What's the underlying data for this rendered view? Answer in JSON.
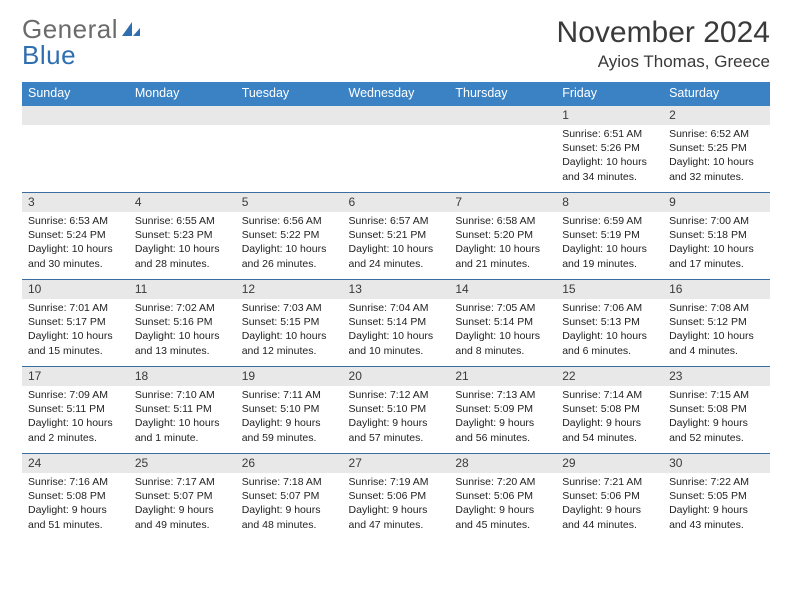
{
  "brand": {
    "line1": "General",
    "line2": "Blue"
  },
  "title": "November 2024",
  "location": "Ayios Thomas, Greece",
  "weekdays": [
    "Sunday",
    "Monday",
    "Tuesday",
    "Wednesday",
    "Thursday",
    "Friday",
    "Saturday"
  ],
  "colors": {
    "header_bg": "#3b82c4",
    "header_text": "#ffffff",
    "daynum_bg": "#e8e8e8",
    "border": "#3b6ea0",
    "logo_gray": "#6b6b6b",
    "logo_blue": "#2f6fb0"
  },
  "weeks": [
    [
      {
        "n": "",
        "sr": "",
        "ss": "",
        "dl": ""
      },
      {
        "n": "",
        "sr": "",
        "ss": "",
        "dl": ""
      },
      {
        "n": "",
        "sr": "",
        "ss": "",
        "dl": ""
      },
      {
        "n": "",
        "sr": "",
        "ss": "",
        "dl": ""
      },
      {
        "n": "",
        "sr": "",
        "ss": "",
        "dl": ""
      },
      {
        "n": "1",
        "sr": "Sunrise: 6:51 AM",
        "ss": "Sunset: 5:26 PM",
        "dl": "Daylight: 10 hours and 34 minutes."
      },
      {
        "n": "2",
        "sr": "Sunrise: 6:52 AM",
        "ss": "Sunset: 5:25 PM",
        "dl": "Daylight: 10 hours and 32 minutes."
      }
    ],
    [
      {
        "n": "3",
        "sr": "Sunrise: 6:53 AM",
        "ss": "Sunset: 5:24 PM",
        "dl": "Daylight: 10 hours and 30 minutes."
      },
      {
        "n": "4",
        "sr": "Sunrise: 6:55 AM",
        "ss": "Sunset: 5:23 PM",
        "dl": "Daylight: 10 hours and 28 minutes."
      },
      {
        "n": "5",
        "sr": "Sunrise: 6:56 AM",
        "ss": "Sunset: 5:22 PM",
        "dl": "Daylight: 10 hours and 26 minutes."
      },
      {
        "n": "6",
        "sr": "Sunrise: 6:57 AM",
        "ss": "Sunset: 5:21 PM",
        "dl": "Daylight: 10 hours and 24 minutes."
      },
      {
        "n": "7",
        "sr": "Sunrise: 6:58 AM",
        "ss": "Sunset: 5:20 PM",
        "dl": "Daylight: 10 hours and 21 minutes."
      },
      {
        "n": "8",
        "sr": "Sunrise: 6:59 AM",
        "ss": "Sunset: 5:19 PM",
        "dl": "Daylight: 10 hours and 19 minutes."
      },
      {
        "n": "9",
        "sr": "Sunrise: 7:00 AM",
        "ss": "Sunset: 5:18 PM",
        "dl": "Daylight: 10 hours and 17 minutes."
      }
    ],
    [
      {
        "n": "10",
        "sr": "Sunrise: 7:01 AM",
        "ss": "Sunset: 5:17 PM",
        "dl": "Daylight: 10 hours and 15 minutes."
      },
      {
        "n": "11",
        "sr": "Sunrise: 7:02 AM",
        "ss": "Sunset: 5:16 PM",
        "dl": "Daylight: 10 hours and 13 minutes."
      },
      {
        "n": "12",
        "sr": "Sunrise: 7:03 AM",
        "ss": "Sunset: 5:15 PM",
        "dl": "Daylight: 10 hours and 12 minutes."
      },
      {
        "n": "13",
        "sr": "Sunrise: 7:04 AM",
        "ss": "Sunset: 5:14 PM",
        "dl": "Daylight: 10 hours and 10 minutes."
      },
      {
        "n": "14",
        "sr": "Sunrise: 7:05 AM",
        "ss": "Sunset: 5:14 PM",
        "dl": "Daylight: 10 hours and 8 minutes."
      },
      {
        "n": "15",
        "sr": "Sunrise: 7:06 AM",
        "ss": "Sunset: 5:13 PM",
        "dl": "Daylight: 10 hours and 6 minutes."
      },
      {
        "n": "16",
        "sr": "Sunrise: 7:08 AM",
        "ss": "Sunset: 5:12 PM",
        "dl": "Daylight: 10 hours and 4 minutes."
      }
    ],
    [
      {
        "n": "17",
        "sr": "Sunrise: 7:09 AM",
        "ss": "Sunset: 5:11 PM",
        "dl": "Daylight: 10 hours and 2 minutes."
      },
      {
        "n": "18",
        "sr": "Sunrise: 7:10 AM",
        "ss": "Sunset: 5:11 PM",
        "dl": "Daylight: 10 hours and 1 minute."
      },
      {
        "n": "19",
        "sr": "Sunrise: 7:11 AM",
        "ss": "Sunset: 5:10 PM",
        "dl": "Daylight: 9 hours and 59 minutes."
      },
      {
        "n": "20",
        "sr": "Sunrise: 7:12 AM",
        "ss": "Sunset: 5:10 PM",
        "dl": "Daylight: 9 hours and 57 minutes."
      },
      {
        "n": "21",
        "sr": "Sunrise: 7:13 AM",
        "ss": "Sunset: 5:09 PM",
        "dl": "Daylight: 9 hours and 56 minutes."
      },
      {
        "n": "22",
        "sr": "Sunrise: 7:14 AM",
        "ss": "Sunset: 5:08 PM",
        "dl": "Daylight: 9 hours and 54 minutes."
      },
      {
        "n": "23",
        "sr": "Sunrise: 7:15 AM",
        "ss": "Sunset: 5:08 PM",
        "dl": "Daylight: 9 hours and 52 minutes."
      }
    ],
    [
      {
        "n": "24",
        "sr": "Sunrise: 7:16 AM",
        "ss": "Sunset: 5:08 PM",
        "dl": "Daylight: 9 hours and 51 minutes."
      },
      {
        "n": "25",
        "sr": "Sunrise: 7:17 AM",
        "ss": "Sunset: 5:07 PM",
        "dl": "Daylight: 9 hours and 49 minutes."
      },
      {
        "n": "26",
        "sr": "Sunrise: 7:18 AM",
        "ss": "Sunset: 5:07 PM",
        "dl": "Daylight: 9 hours and 48 minutes."
      },
      {
        "n": "27",
        "sr": "Sunrise: 7:19 AM",
        "ss": "Sunset: 5:06 PM",
        "dl": "Daylight: 9 hours and 47 minutes."
      },
      {
        "n": "28",
        "sr": "Sunrise: 7:20 AM",
        "ss": "Sunset: 5:06 PM",
        "dl": "Daylight: 9 hours and 45 minutes."
      },
      {
        "n": "29",
        "sr": "Sunrise: 7:21 AM",
        "ss": "Sunset: 5:06 PM",
        "dl": "Daylight: 9 hours and 44 minutes."
      },
      {
        "n": "30",
        "sr": "Sunrise: 7:22 AM",
        "ss": "Sunset: 5:05 PM",
        "dl": "Daylight: 9 hours and 43 minutes."
      }
    ]
  ]
}
